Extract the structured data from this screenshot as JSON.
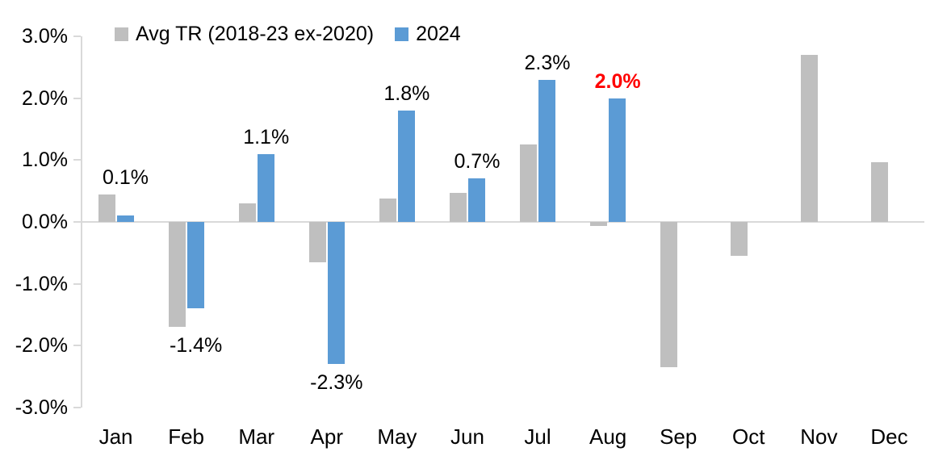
{
  "chart_data": {
    "type": "bar",
    "title": "",
    "categories": [
      "Jan",
      "Feb",
      "Mar",
      "Apr",
      "May",
      "Jun",
      "Jul",
      "Aug",
      "Sep",
      "Oct",
      "Nov",
      "Dec"
    ],
    "series": [
      {
        "name": "Avg TR (2018-23 ex-2020)",
        "color": "#BFBFBF",
        "values": [
          0.45,
          -1.7,
          0.3,
          -0.65,
          0.38,
          0.47,
          1.25,
          -0.07,
          -2.35,
          -0.55,
          2.7,
          0.97
        ]
      },
      {
        "name": "2024",
        "color": "#5B9BD5",
        "values": [
          0.1,
          -1.4,
          1.1,
          -2.3,
          1.8,
          0.7,
          2.3,
          2.0,
          null,
          null,
          null,
          null
        ]
      }
    ],
    "annotations": [
      {
        "index": 0,
        "text": "0.1%",
        "color": "#000000",
        "bold": false
      },
      {
        "index": 1,
        "text": "-1.4%",
        "color": "#000000",
        "bold": false
      },
      {
        "index": 2,
        "text": "1.1%",
        "color": "#000000",
        "bold": false
      },
      {
        "index": 3,
        "text": "-2.3%",
        "color": "#000000",
        "bold": false
      },
      {
        "index": 4,
        "text": "1.8%",
        "color": "#000000",
        "bold": false
      },
      {
        "index": 5,
        "text": "0.7%",
        "color": "#000000",
        "bold": false
      },
      {
        "index": 6,
        "text": "2.3%",
        "color": "#000000",
        "bold": false
      },
      {
        "index": 7,
        "text": "2.0%",
        "color": "#FF0000",
        "bold": true
      }
    ],
    "ylim": [
      -3,
      3
    ],
    "ytick_step": 1.0,
    "ytick_labels": [
      "3.0%",
      "2.0%",
      "1.0%",
      "0.0%",
      "-1.0%",
      "-2.0%",
      "-3.0%"
    ],
    "xlabel": "",
    "ylabel": "",
    "legend_position": "top",
    "grid": false,
    "axis_color": "#D9D9D9",
    "annotation_red": "#FF0000"
  }
}
